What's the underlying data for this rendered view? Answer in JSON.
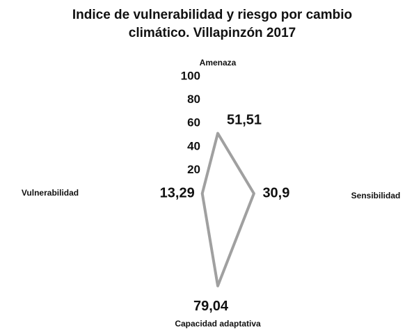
{
  "chart_data": {
    "type": "radar",
    "title": [
      "Indice de vulnerabilidad y riesgo por cambio",
      "climático. Villapinzón 2017"
    ],
    "categories": [
      "Amenaza",
      "Sensibilidad",
      "Capacidad adaptativa",
      "Vulnerabilidad"
    ],
    "values": [
      51.51,
      30.9,
      79.04,
      13.29
    ],
    "value_labels": [
      "51,51",
      "30,9",
      "79,04",
      "13,29"
    ],
    "color": "#a0a0a0",
    "ylim": [
      0,
      100
    ],
    "yticks": [
      20,
      40,
      60,
      80,
      100
    ]
  }
}
